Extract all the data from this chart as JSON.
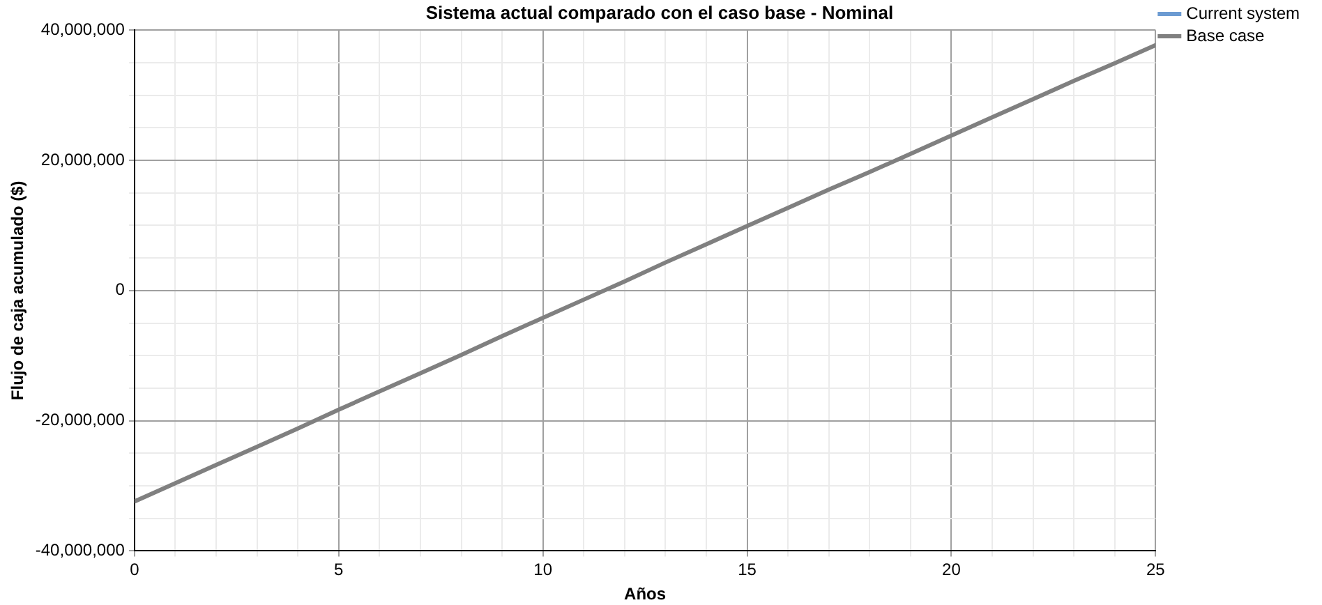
{
  "chart_data": {
    "type": "line",
    "title": "Sistema actual comparado con el caso base - Nominal",
    "xlabel": "Años",
    "ylabel": "Flujo de caja acumulado ($)",
    "x": [
      0,
      1,
      2,
      3,
      4,
      5,
      6,
      7,
      8,
      9,
      10,
      11,
      12,
      13,
      14,
      15,
      16,
      17,
      18,
      19,
      20,
      21,
      22,
      23,
      24,
      25
    ],
    "series": [
      {
        "name": "Current system",
        "color": "#6c9bd2",
        "values": [
          null,
          null,
          null,
          null,
          null,
          null,
          null,
          null,
          null,
          null,
          null,
          null,
          null,
          null,
          null,
          null,
          null,
          null,
          null,
          null,
          null,
          null,
          null,
          null,
          null,
          null
        ]
      },
      {
        "name": "Base case",
        "color": "#808080",
        "values": [
          -32400000,
          -29600000,
          -26800000,
          -24000000,
          -21200000,
          -18300000,
          -15500000,
          -12700000,
          -9900000,
          -7000000,
          -4200000,
          -1400000,
          1400000,
          4300000,
          7100000,
          9900000,
          12700000,
          15500000,
          18200000,
          21000000,
          23800000,
          26600000,
          29400000,
          32200000,
          34900000,
          37700000
        ]
      }
    ],
    "xlim": [
      0,
      25
    ],
    "xticks": [
      0,
      {
        "value": 1,
        "label": null
      },
      {
        "value": 2,
        "label": null
      },
      {
        "value": 3,
        "label": null
      },
      {
        "value": 4,
        "label": null
      },
      5,
      {
        "value": 6,
        "label": null
      },
      {
        "value": 7,
        "label": null
      },
      {
        "value": 8,
        "label": null
      },
      {
        "value": 9,
        "label": null
      },
      10,
      {
        "value": 11,
        "label": null
      },
      {
        "value": 12,
        "label": null
      },
      {
        "value": 13,
        "label": null
      },
      {
        "value": 14,
        "label": null
      },
      15,
      {
        "value": 16,
        "label": null
      },
      {
        "value": 17,
        "label": null
      },
      {
        "value": 18,
        "label": null
      },
      {
        "value": 19,
        "label": null
      },
      20,
      {
        "value": 21,
        "label": null
      },
      {
        "value": 22,
        "label": null
      },
      {
        "value": 23,
        "label": null
      },
      {
        "value": 24,
        "label": null
      },
      25
    ],
    "ylim": [
      -40000000,
      40000000
    ],
    "yticks": [
      {
        "value": -40000000,
        "label": "-40,000,000"
      },
      {
        "value": -35000000,
        "label": null
      },
      {
        "value": -30000000,
        "label": null
      },
      {
        "value": -25000000,
        "label": null
      },
      {
        "value": -20000000,
        "label": "-20,000,000"
      },
      {
        "value": -15000000,
        "label": null
      },
      {
        "value": -10000000,
        "label": null
      },
      {
        "value": -5000000,
        "label": null
      },
      0,
      {
        "value": 5000000,
        "label": null
      },
      {
        "value": 10000000,
        "label": null
      },
      {
        "value": 15000000,
        "label": null
      },
      {
        "value": 20000000,
        "label": "20,000,000"
      },
      {
        "value": 25000000,
        "label": null
      },
      {
        "value": 30000000,
        "label": null
      },
      {
        "value": 35000000,
        "label": null
      },
      {
        "value": 40000000,
        "label": "40,000,000"
      }
    ],
    "grid": true,
    "legend": "right",
    "marker": "none",
    "line_style": "solid"
  }
}
